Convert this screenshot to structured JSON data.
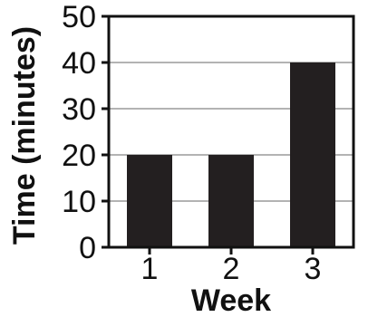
{
  "chart_data": {
    "type": "bar",
    "title": "",
    "categories": [
      "1",
      "2",
      "3"
    ],
    "values": [
      20,
      20,
      40
    ],
    "xlabel": "Week",
    "ylabel": "Time (minutes)",
    "ylim": [
      0,
      50
    ],
    "yticks": [
      0,
      10,
      20,
      30,
      40,
      50
    ],
    "grid": true,
    "bar_color": "#231f20",
    "grid_color": "#b3b3b3",
    "axis_color": "#111111"
  }
}
